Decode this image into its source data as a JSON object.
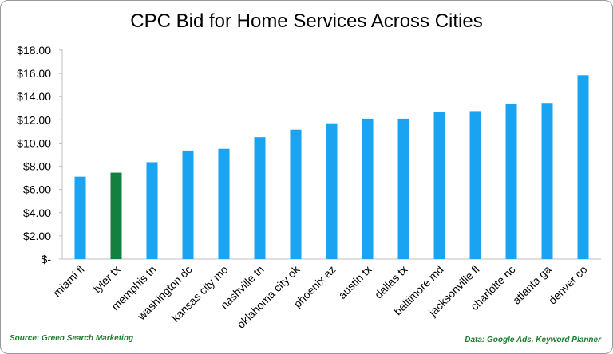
{
  "chart_data": {
    "type": "bar",
    "title": "CPC Bid for Home Services Across Cities",
    "xlabel": "",
    "ylabel": "",
    "categories": [
      "miami fl",
      "tyler tx",
      "memphis tn",
      "washington dc",
      "kansas city mo",
      "nashville tn",
      "oklahoma city ok",
      "phoenix az",
      "austin tx",
      "dallas tx",
      "baltimore md",
      "jacksonville fl",
      "charlotte nc",
      "atlanta ga",
      "denver co"
    ],
    "values": [
      7.1,
      7.45,
      8.35,
      9.35,
      9.5,
      10.5,
      11.15,
      11.7,
      12.1,
      12.1,
      12.65,
      12.75,
      13.4,
      13.45,
      15.85
    ],
    "ylim": [
      0,
      18
    ],
    "yticks": [
      0,
      2,
      4,
      6,
      8,
      10,
      12,
      14,
      16,
      18
    ],
    "ytick_labels": [
      "$-",
      "$2.00",
      "$4.00",
      "$6.00",
      "$8.00",
      "$10.00",
      "$12.00",
      "$14.00",
      "$16.00",
      "$18.00"
    ],
    "bar_color": "#1aa3f0",
    "highlight_color": "#138040",
    "highlight_category": "tyler tx",
    "grid": false,
    "legend": "none"
  },
  "footer": {
    "source": "Source: Green Search Marketing",
    "data_note": "Data: Google Ads, Keyword Planner"
  }
}
